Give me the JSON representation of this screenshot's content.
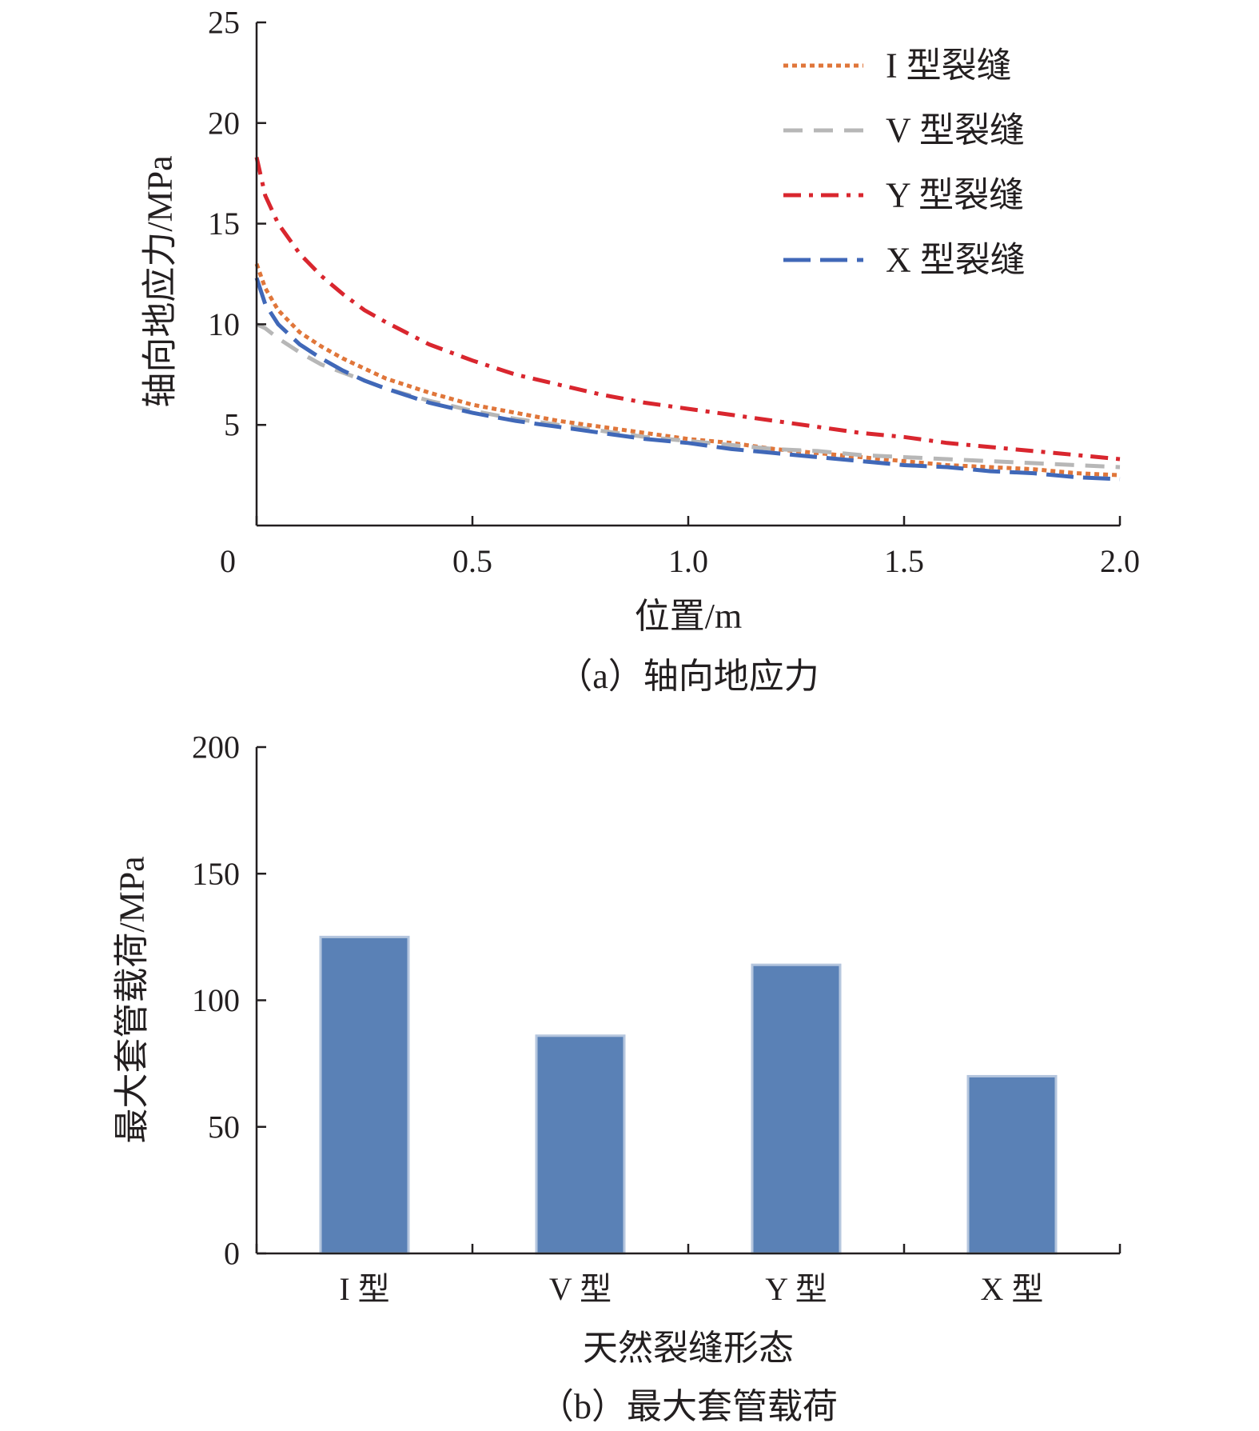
{
  "chart_data": [
    {
      "type": "line",
      "caption": "（a）轴向地应力",
      "xlabel": "位置/m",
      "ylabel": "轴向地应力/MPa",
      "xlim": [
        0,
        2.0
      ],
      "ylim": [
        0,
        25
      ],
      "xticks": [
        0,
        0.5,
        1.0,
        1.5,
        2.0
      ],
      "xtick_labels": [
        "0",
        "0.5",
        "1.0",
        "1.5",
        "2.0"
      ],
      "yticks": [
        5,
        10,
        15,
        20,
        25
      ],
      "ytick_labels": [
        "5",
        "10",
        "15",
        "20",
        "25"
      ],
      "grid": false,
      "legend_position": "top-right",
      "series": [
        {
          "name": "I 型裂缝",
          "color": "#e0763a",
          "dash": "dotted",
          "x": [
            0,
            0.02,
            0.05,
            0.1,
            0.15,
            0.2,
            0.25,
            0.3,
            0.4,
            0.5,
            0.6,
            0.7,
            0.8,
            0.9,
            1.0,
            1.1,
            1.2,
            1.3,
            1.4,
            1.5,
            1.6,
            1.7,
            1.8,
            1.9,
            2.0
          ],
          "y": [
            13.0,
            11.8,
            10.7,
            9.6,
            8.9,
            8.3,
            7.8,
            7.3,
            6.6,
            6.0,
            5.6,
            5.2,
            4.9,
            4.6,
            4.3,
            4.1,
            3.8,
            3.6,
            3.4,
            3.2,
            3.0,
            2.9,
            2.8,
            2.6,
            2.5
          ]
        },
        {
          "name": "V 型裂缝",
          "color": "#b7b7b7",
          "dash": "dashed",
          "x": [
            0,
            0.02,
            0.05,
            0.1,
            0.15,
            0.2,
            0.25,
            0.3,
            0.4,
            0.5,
            0.6,
            0.7,
            0.8,
            0.9,
            1.0,
            1.1,
            1.2,
            1.3,
            1.4,
            1.5,
            1.6,
            1.7,
            1.8,
            1.9,
            2.0
          ],
          "y": [
            10.0,
            9.8,
            9.3,
            8.6,
            8.0,
            7.6,
            7.2,
            6.8,
            6.2,
            5.7,
            5.3,
            5.0,
            4.7,
            4.4,
            4.2,
            4.0,
            3.8,
            3.7,
            3.5,
            3.4,
            3.3,
            3.2,
            3.1,
            3.0,
            2.9
          ]
        },
        {
          "name": "Y 型裂缝",
          "color": "#d9262e",
          "dash": "dashdot",
          "x": [
            0,
            0.02,
            0.05,
            0.1,
            0.15,
            0.2,
            0.25,
            0.3,
            0.4,
            0.5,
            0.6,
            0.7,
            0.8,
            0.9,
            1.0,
            1.1,
            1.2,
            1.3,
            1.4,
            1.5,
            1.6,
            1.7,
            1.8,
            1.9,
            2.0
          ],
          "y": [
            18.3,
            16.4,
            15.0,
            13.5,
            12.4,
            11.5,
            10.7,
            10.1,
            9.0,
            8.2,
            7.5,
            7.0,
            6.5,
            6.1,
            5.8,
            5.5,
            5.2,
            4.9,
            4.6,
            4.4,
            4.1,
            3.9,
            3.7,
            3.5,
            3.3
          ]
        },
        {
          "name": "X 型裂缝",
          "color": "#4068b8",
          "dash": "longdash",
          "x": [
            0,
            0.02,
            0.05,
            0.1,
            0.15,
            0.2,
            0.25,
            0.3,
            0.4,
            0.5,
            0.6,
            0.7,
            0.8,
            0.9,
            1.0,
            1.1,
            1.2,
            1.3,
            1.4,
            1.5,
            1.6,
            1.7,
            1.8,
            1.9,
            2.0
          ],
          "y": [
            12.3,
            11.0,
            10.0,
            9.0,
            8.3,
            7.7,
            7.2,
            6.8,
            6.1,
            5.6,
            5.2,
            4.9,
            4.6,
            4.3,
            4.1,
            3.8,
            3.6,
            3.4,
            3.2,
            3.0,
            2.9,
            2.7,
            2.6,
            2.4,
            2.3
          ]
        }
      ]
    },
    {
      "type": "bar",
      "caption": "（b）最大套管载荷",
      "xlabel": "天然裂缝形态",
      "ylabel": "最大套管载荷/MPa",
      "ylim": [
        0,
        200
      ],
      "yticks": [
        0,
        50,
        100,
        150,
        200
      ],
      "ytick_labels": [
        "0",
        "50",
        "100",
        "150",
        "200"
      ],
      "grid": false,
      "bar_color": "#5a81b6",
      "categories": [
        "I 型",
        "V 型",
        "Y 型",
        "X 型"
      ],
      "values": [
        125,
        86,
        114,
        70
      ]
    }
  ]
}
